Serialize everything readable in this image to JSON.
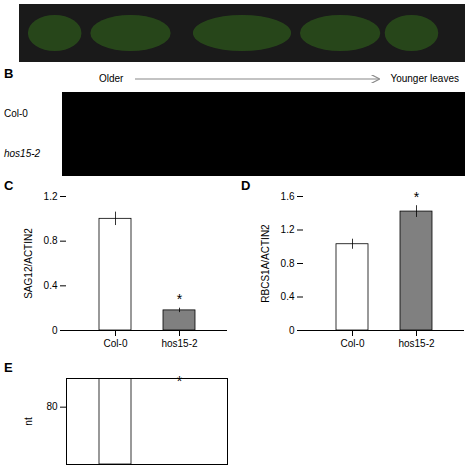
{
  "chart_data": [
    {
      "type": "image",
      "title": "B",
      "annotations": [
        "Older",
        "Younger leaves",
        "Col-0",
        "hos15-2"
      ]
    },
    {
      "type": "bar",
      "title": "C",
      "categories": [
        "Col-0",
        "hos15-2"
      ],
      "values": [
        1.0,
        0.18
      ],
      "errors": [
        0.06,
        0.02
      ],
      "colors": [
        "white",
        "#808080"
      ],
      "ylabel": "SAG12/ACTIN2",
      "ylim": [
        0,
        1.2
      ],
      "yticks": [
        0,
        0.4,
        0.8,
        1.2
      ],
      "annotations": [
        {
          "text": "*",
          "x": "hos15-2",
          "y": 0.21
        }
      ]
    },
    {
      "type": "bar",
      "title": "D",
      "categories": [
        "Col-0",
        "hos15-2"
      ],
      "values": [
        1.03,
        1.42
      ],
      "errors": [
        0.06,
        0.07
      ],
      "colors": [
        "white",
        "#808080"
      ],
      "ylabel": "RBCS1A/ACTIN2",
      "ylim": [
        0,
        1.6
      ],
      "yticks": [
        0,
        0.4,
        0.8,
        1.2,
        1.6
      ],
      "annotations": [
        {
          "text": "*",
          "x": "hos15-2",
          "y": 1.5
        }
      ]
    },
    {
      "type": "bar",
      "title": "E",
      "categories": [
        null,
        null
      ],
      "values": [
        120,
        null
      ],
      "colors": [
        "white",
        "white"
      ],
      "ylabel": "nt",
      "ylim": [
        0,
        120
      ],
      "yticks": [
        80
      ],
      "tick_labels": "y",
      "annotations": [
        {
          "text": "*",
          "x": 1,
          "y": 105
        }
      ]
    }
  ]
}
